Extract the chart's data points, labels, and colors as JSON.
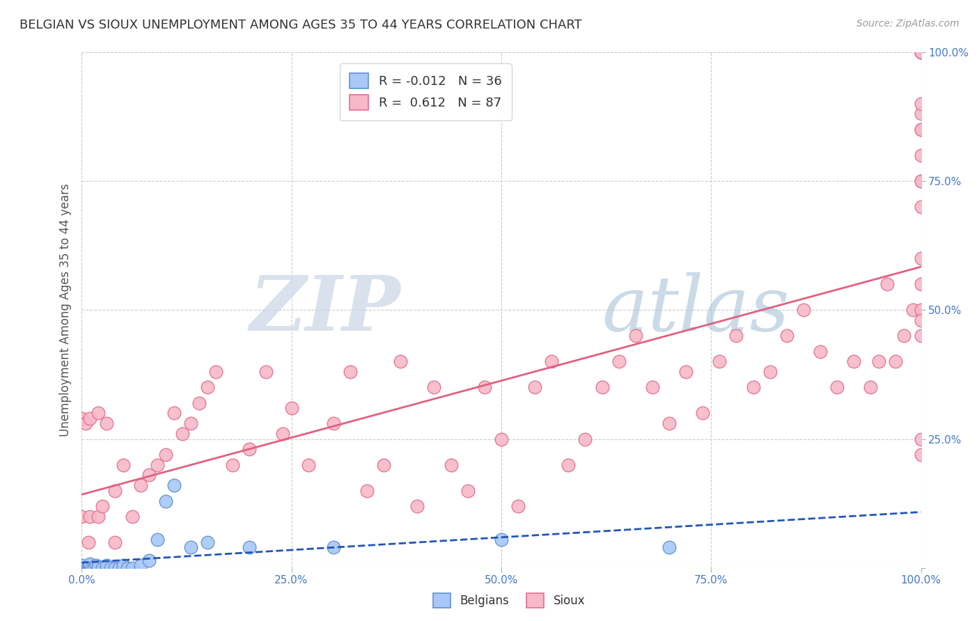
{
  "title": "BELGIAN VS SIOUX UNEMPLOYMENT AMONG AGES 35 TO 44 YEARS CORRELATION CHART",
  "source": "Source: ZipAtlas.com",
  "ylabel": "Unemployment Among Ages 35 to 44 years",
  "xlim": [
    0,
    1.0
  ],
  "ylim": [
    0,
    1.0
  ],
  "xticks": [
    0.0,
    0.25,
    0.5,
    0.75,
    1.0
  ],
  "yticks": [
    0.0,
    0.25,
    0.5,
    0.75,
    1.0
  ],
  "xticklabels": [
    "0.0%",
    "25.0%",
    "50.0%",
    "75.0%",
    "100.0%"
  ],
  "yticklabels": [
    "",
    "25.0%",
    "50.0%",
    "75.0%",
    "100.0%"
  ],
  "belgian_color": "#a8c8f8",
  "sioux_color": "#f8b8c8",
  "belgian_edge_color": "#6090d0",
  "sioux_edge_color": "#e07090",
  "belgian_line_color": "#2255bb",
  "sioux_line_color": "#e06080",
  "legend_belgian_R": "-0.012",
  "legend_belgian_N": "36",
  "legend_sioux_R": "0.612",
  "legend_sioux_N": "87",
  "watermark_zip": "ZIP",
  "watermark_atlas": "atlas",
  "watermark_color_zip": "#c0cfe0",
  "watermark_color_atlas": "#a0c0d8",
  "background_color": "#ffffff",
  "grid_color": "#cccccc",
  "tick_label_color": "#4477cc",
  "title_color": "#333333",
  "ylabel_color": "#555555",
  "bel_x": [
    0.0,
    0.0,
    0.0,
    0.0,
    0.005,
    0.007,
    0.008,
    0.01,
    0.01,
    0.01,
    0.012,
    0.015,
    0.017,
    0.02,
    0.02,
    0.02,
    0.025,
    0.03,
    0.03,
    0.035,
    0.04,
    0.045,
    0.05,
    0.055,
    0.06,
    0.07,
    0.08,
    0.09,
    0.1,
    0.11,
    0.13,
    0.15,
    0.2,
    0.3,
    0.5,
    0.7
  ],
  "bel_y": [
    0.0,
    0.0,
    0.0,
    0.005,
    0.0,
    0.0,
    0.0,
    0.0,
    0.005,
    0.008,
    0.0,
    0.0,
    0.005,
    0.0,
    0.0,
    0.003,
    0.0,
    0.0,
    0.005,
    0.0,
    0.0,
    0.0,
    0.005,
    0.0,
    0.0,
    0.005,
    0.015,
    0.055,
    0.13,
    0.16,
    0.04,
    0.05,
    0.04,
    0.04,
    0.055,
    0.04
  ],
  "sioux_x": [
    0.0,
    0.0,
    0.005,
    0.008,
    0.01,
    0.01,
    0.02,
    0.02,
    0.025,
    0.03,
    0.04,
    0.04,
    0.05,
    0.06,
    0.07,
    0.08,
    0.09,
    0.1,
    0.11,
    0.12,
    0.13,
    0.14,
    0.15,
    0.16,
    0.18,
    0.2,
    0.22,
    0.24,
    0.25,
    0.27,
    0.3,
    0.32,
    0.34,
    0.36,
    0.38,
    0.4,
    0.42,
    0.44,
    0.46,
    0.48,
    0.5,
    0.52,
    0.54,
    0.56,
    0.58,
    0.6,
    0.62,
    0.64,
    0.66,
    0.68,
    0.7,
    0.72,
    0.74,
    0.76,
    0.78,
    0.8,
    0.82,
    0.84,
    0.86,
    0.88,
    0.9,
    0.92,
    0.94,
    0.95,
    0.96,
    0.97,
    0.98,
    0.99,
    1.0,
    1.0,
    1.0,
    1.0,
    1.0,
    1.0,
    1.0,
    1.0,
    1.0,
    1.0,
    1.0,
    1.0,
    1.0,
    1.0,
    1.0,
    1.0,
    1.0,
    1.0,
    1.0
  ],
  "sioux_y": [
    0.1,
    0.29,
    0.28,
    0.05,
    0.1,
    0.29,
    0.1,
    0.3,
    0.12,
    0.28,
    0.05,
    0.15,
    0.2,
    0.1,
    0.16,
    0.18,
    0.2,
    0.22,
    0.3,
    0.26,
    0.28,
    0.32,
    0.35,
    0.38,
    0.2,
    0.23,
    0.38,
    0.26,
    0.31,
    0.2,
    0.28,
    0.38,
    0.15,
    0.2,
    0.4,
    0.12,
    0.35,
    0.2,
    0.15,
    0.35,
    0.25,
    0.12,
    0.35,
    0.4,
    0.2,
    0.25,
    0.35,
    0.4,
    0.45,
    0.35,
    0.28,
    0.38,
    0.3,
    0.4,
    0.45,
    0.35,
    0.38,
    0.45,
    0.5,
    0.42,
    0.35,
    0.4,
    0.35,
    0.4,
    0.55,
    0.4,
    0.45,
    0.5,
    1.0,
    1.0,
    0.55,
    0.5,
    0.75,
    0.8,
    0.85,
    0.88,
    1.0,
    1.0,
    0.45,
    0.22,
    0.25,
    0.48,
    0.6,
    0.7,
    0.75,
    0.85,
    0.9
  ]
}
